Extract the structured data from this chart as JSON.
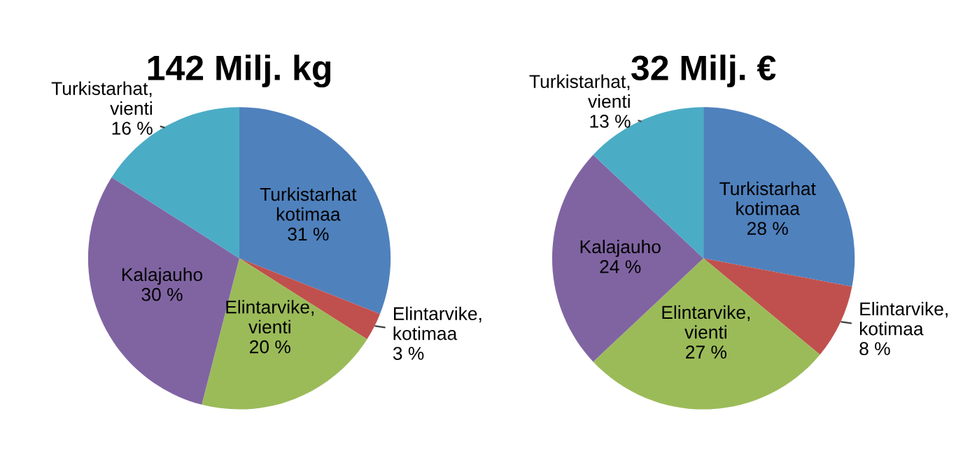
{
  "chart_data": [
    {
      "type": "pie",
      "title": "142 Milj. kg",
      "categories": [
        "Turkistarhat kotimaa",
        "Elintarvike, kotimaa",
        "Elintarvike, vienti",
        "Kalajauho",
        "Turkistarhat, vienti"
      ],
      "values": [
        31,
        3,
        20,
        30,
        16
      ],
      "value_labels": [
        "31 %",
        "3 %",
        "20 %",
        "30 %",
        "16 %"
      ],
      "colors": [
        "#4f81bd",
        "#c0504d",
        "#9bbb59",
        "#8064a2",
        "#4bacc6"
      ],
      "legend": false
    },
    {
      "type": "pie",
      "title": "32 Milj. €",
      "categories": [
        "Turkistarhat kotimaa",
        "Elintarvike, kotimaa",
        "Elintarvike, vienti",
        "Kalajauho",
        "Turkistarhat, vienti"
      ],
      "values": [
        28,
        8,
        27,
        24,
        13
      ],
      "value_labels": [
        "28 %",
        "8 %",
        "27 %",
        "24 %",
        "13 %"
      ],
      "colors": [
        "#4f81bd",
        "#c0504d",
        "#9bbb59",
        "#8064a2",
        "#4bacc6"
      ],
      "legend": false
    }
  ]
}
